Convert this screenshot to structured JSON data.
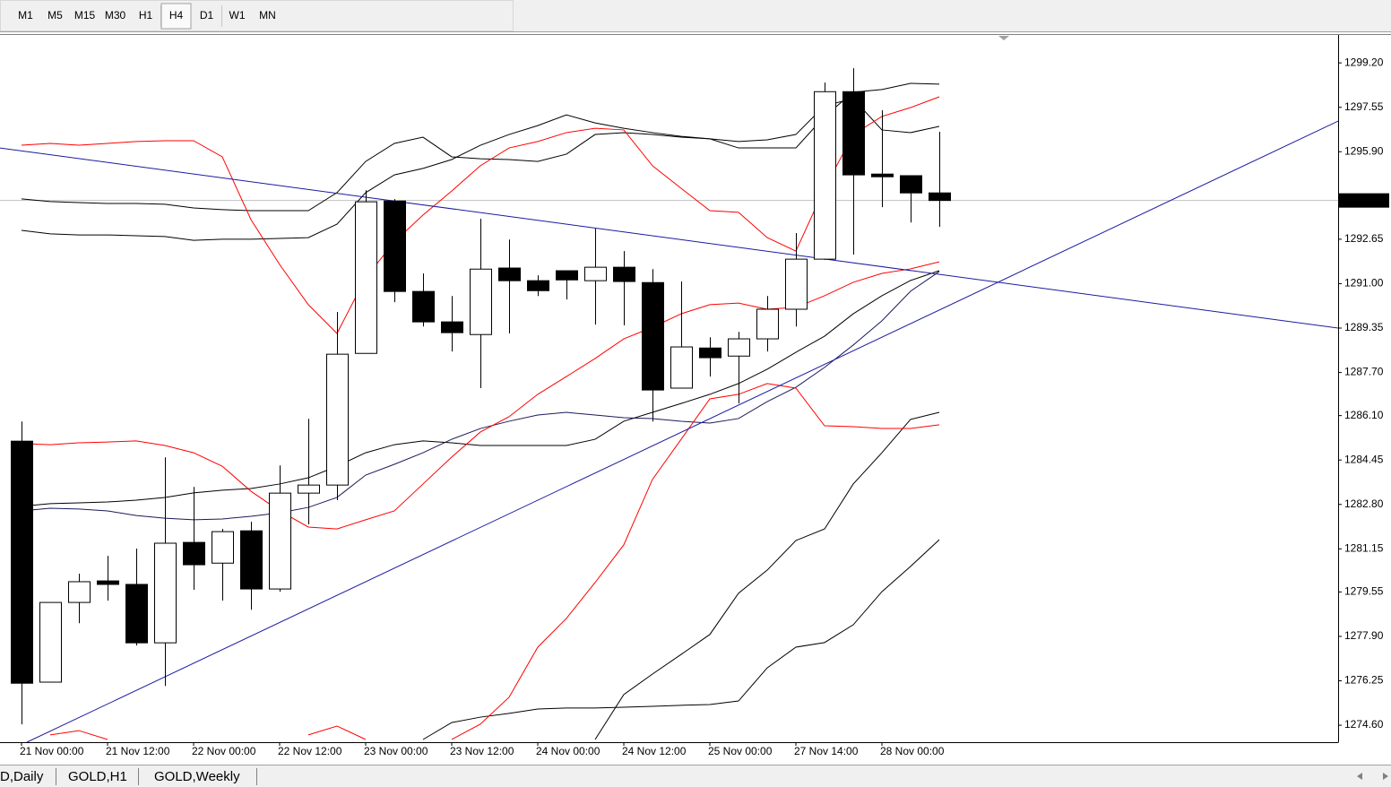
{
  "toolbar": {
    "timeframes": [
      "M1",
      "M5",
      "M15",
      "M30",
      "H1",
      "H4",
      "D1",
      "W1",
      "MN"
    ],
    "active": "H4"
  },
  "chart_data": {
    "type": "candlestick",
    "categories": [
      "21 Nov 00:00",
      null,
      null,
      "21 Nov 12:00",
      null,
      null,
      "22 Nov 00:00",
      null,
      null,
      "22 Nov 12:00",
      null,
      null,
      "23 Nov 00:00",
      null,
      null,
      "23 Nov 12:00",
      null,
      null,
      "24 Nov 00:00",
      null,
      null,
      "24 Nov 12:00",
      null,
      null,
      "25 Nov 00:00",
      null,
      null,
      "27 Nov 14:00",
      null,
      null,
      "28 Nov 00:00",
      null,
      null
    ],
    "open": [
      1285.15,
      1276.2,
      1279.16,
      1279.96,
      1279.83,
      1277.66,
      1281.39,
      1280.62,
      1281.82,
      1279.66,
      1283.22,
      1283.52,
      1288.41,
      1294.07,
      1290.71,
      1289.58,
      1289.11,
      1291.58,
      1291.11,
      1291.48,
      1291.11,
      1291.61,
      1291.04,
      1287.12,
      1288.61,
      1288.31,
      1288.95,
      1290.05,
      1291.91,
      1298.13,
      1295.07,
      1295.01,
      1294.37
    ],
    "high": [
      1285.88,
      1279.16,
      1280.23,
      1280.89,
      1281.16,
      1284.55,
      1283.45,
      1281.89,
      1282.16,
      1284.25,
      1285.98,
      1289.95,
      1294.47,
      1294.14,
      1291.38,
      1290.54,
      1293.41,
      1292.64,
      1291.31,
      1291.48,
      1293.04,
      1292.21,
      1291.54,
      1291.08,
      1289.01,
      1289.21,
      1290.54,
      1292.88,
      1298.47,
      1299.0,
      1297.44,
      1295.01,
      1296.64
    ],
    "low": [
      1274.63,
      1276.2,
      1278.39,
      1279.23,
      1277.56,
      1276.06,
      1279.63,
      1279.23,
      1278.89,
      1279.56,
      1282.06,
      1282.96,
      1288.41,
      1290.31,
      1289.41,
      1288.48,
      1287.12,
      1289.15,
      1290.54,
      1290.41,
      1289.48,
      1289.45,
      1285.88,
      1287.12,
      1287.55,
      1286.55,
      1288.48,
      1289.41,
      1291.88,
      1292.08,
      1293.84,
      1293.27,
      1293.11
    ],
    "close": [
      1276.16,
      1279.16,
      1279.93,
      1279.83,
      1277.66,
      1281.36,
      1280.56,
      1281.79,
      1279.66,
      1283.22,
      1283.52,
      1288.38,
      1294.04,
      1290.71,
      1289.58,
      1289.18,
      1291.54,
      1291.11,
      1290.74,
      1291.14,
      1291.61,
      1291.08,
      1287.05,
      1288.65,
      1288.25,
      1288.95,
      1290.05,
      1291.91,
      1298.13,
      1295.04,
      1294.97,
      1294.37,
      1294.09
    ],
    "up_color": "#ffffff",
    "down_color": "#000000",
    "outline_color": "#000000",
    "indicators": [
      {
        "color": "#000000",
        "values": [
          1294.15,
          1294.05,
          1294.01,
          1293.98,
          1293.98,
          1293.95,
          1293.81,
          1293.75,
          1293.71,
          1293.71,
          1293.71,
          1294.38,
          1295.54,
          1296.21,
          1296.44,
          1295.71,
          1295.64,
          1295.61,
          1295.54,
          1295.81,
          1296.54,
          1296.61,
          1296.54,
          1296.44,
          1296.38,
          1296.04,
          1296.04,
          1296.04,
          1297.21,
          1298.11,
          1298.21,
          1298.44,
          1298.41
        ]
      },
      {
        "color": "#000000",
        "values": [
          1292.98,
          1292.85,
          1292.81,
          1292.81,
          1292.78,
          1292.75,
          1292.61,
          1292.65,
          1292.65,
          1292.68,
          1292.71,
          1293.21,
          1294.38,
          1295.04,
          1295.28,
          1295.61,
          1296.14,
          1296.54,
          1296.87,
          1297.27,
          1296.97,
          1296.77,
          1296.61,
          1296.47,
          1296.38,
          1296.28,
          1296.34,
          1296.54,
          1297.61,
          1297.87,
          1296.71,
          1296.61,
          1296.84
        ]
      },
      {
        "color": "#000000",
        "values": [
          1282.73,
          1282.83,
          1282.86,
          1282.89,
          1282.96,
          1283.06,
          1283.23,
          1283.33,
          1283.39,
          1283.56,
          1283.79,
          1284.22,
          1284.72,
          1285.02,
          1285.16,
          1285.09,
          1284.99,
          1284.99,
          1284.99,
          1284.99,
          1285.22,
          1285.89,
          1286.22,
          1286.55,
          1286.89,
          1287.29,
          1287.82,
          1288.45,
          1289.05,
          1289.88,
          1290.55,
          1291.12,
          1291.48
        ]
      },
      {
        "color": "#1a1a5a",
        "values": [
          1282.56,
          1282.66,
          1282.63,
          1282.56,
          1282.39,
          1282.29,
          1282.23,
          1282.26,
          1282.36,
          1282.49,
          1282.69,
          1283.06,
          1283.89,
          1284.29,
          1284.72,
          1285.22,
          1285.62,
          1285.89,
          1286.12,
          1286.22,
          1286.12,
          1286.02,
          1285.99,
          1285.89,
          1285.82,
          1285.99,
          1286.62,
          1287.15,
          1287.89,
          1288.72,
          1289.62,
          1290.72,
          1291.45
        ]
      },
      {
        "color": "#000000",
        "values": [
          null,
          null,
          null,
          null,
          null,
          null,
          null,
          null,
          null,
          null,
          null,
          null,
          null,
          null,
          1274.07,
          1274.7,
          1274.9,
          1275.04,
          1275.2,
          1275.24,
          1275.24,
          1275.27,
          1275.3,
          1275.34,
          1275.37,
          1275.5,
          1276.73,
          1277.5,
          1277.67,
          1278.33,
          1279.56,
          1280.5,
          1281.49
        ]
      },
      {
        "color": "#000000",
        "values": [
          null,
          null,
          null,
          null,
          null,
          null,
          null,
          null,
          null,
          null,
          null,
          null,
          null,
          null,
          null,
          null,
          null,
          null,
          null,
          null,
          1274.07,
          1275.74,
          1276.5,
          1277.23,
          1277.97,
          1279.5,
          1280.36,
          1281.46,
          1281.89,
          1283.56,
          1284.72,
          1285.96,
          1286.22
        ]
      },
      {
        "color": "#ff0000",
        "values": [
          1296.14,
          1296.21,
          1296.14,
          1296.21,
          1296.28,
          1296.31,
          1296.31,
          1295.71,
          1293.38,
          1291.71,
          1290.22,
          1289.15,
          1291.22,
          1292.55,
          1293.55,
          1294.44,
          1295.38,
          1296.04,
          1296.28,
          1296.61,
          1296.77,
          1296.71,
          1295.38,
          1294.54,
          1293.71,
          1293.65,
          1292.71,
          1292.21,
          1294.54,
          1296.54,
          1297.21,
          1297.54,
          1297.94
        ]
      },
      {
        "color": "#ff0000",
        "values": [
          1285.06,
          1285.02,
          1285.09,
          1285.12,
          1285.16,
          1284.99,
          1284.72,
          1284.22,
          1283.29,
          1282.56,
          1281.96,
          1281.89,
          1282.23,
          1282.56,
          1283.56,
          1284.56,
          1285.49,
          1286.06,
          1286.89,
          1287.55,
          1288.22,
          1288.95,
          1289.38,
          1289.88,
          1290.22,
          1290.28,
          1290.05,
          1290.12,
          1290.55,
          1291.05,
          1291.38,
          1291.55,
          1291.81
        ]
      },
      {
        "color": "#ff0000",
        "values": [
          null,
          1274.24,
          1274.4,
          1274.07,
          null,
          null,
          null,
          null,
          null,
          null,
          1274.24,
          1274.57,
          1274.07,
          null,
          null,
          1274.07,
          1274.64,
          1275.64,
          1277.5,
          1278.57,
          1279.9,
          1281.3,
          1283.73,
          1285.22,
          1286.72,
          1286.89,
          1287.29,
          1287.12,
          1285.72,
          1285.69,
          1285.62,
          1285.62,
          1285.76
        ]
      }
    ],
    "trendlines": [
      {
        "color": "#1a1aa0",
        "x": [
          -0.75,
          45.91
        ],
        "y": [
          1296.04,
          1289.35
        ]
      },
      {
        "color": "#1a1aa0",
        "x": [
          0.19,
          45.91
        ],
        "y": [
          1273.97,
          1297.04
        ]
      }
    ],
    "ylim": [
      1273.97,
      1300.27
    ],
    "yticks": [
      {
        "value": 1299.2,
        "label": "1299.20"
      },
      1297.55,
      {
        "value": 1295.9,
        "label": "1295.90"
      },
      1292.65,
      {
        "value": 1291,
        "label": "1291.00"
      },
      1289.35,
      {
        "value": 1287.7,
        "label": "1287.70"
      },
      {
        "value": 1286.1,
        "label": "1286.10"
      },
      1284.45,
      {
        "value": 1282.8,
        "label": "1282.80"
      },
      1281.15,
      1279.55,
      {
        "value": 1277.9,
        "label": "1277.90"
      },
      1276.25,
      {
        "value": 1274.6,
        "label": "1274.60"
      }
    ],
    "current_price": 1294.09
  },
  "tabs": [
    "D,Daily",
    "GOLD,H1",
    "GOLD,Weekly"
  ]
}
